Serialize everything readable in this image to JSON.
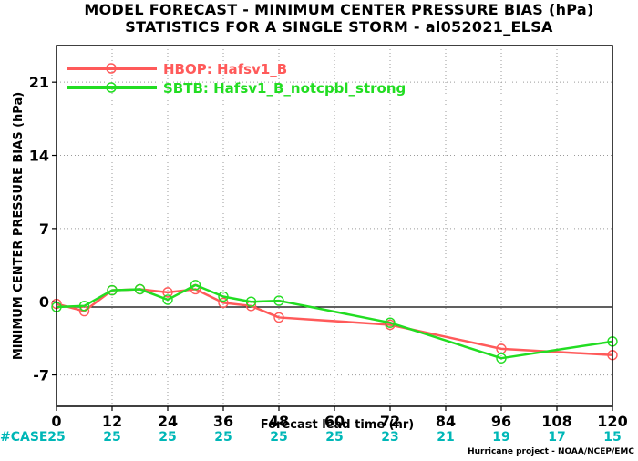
{
  "colors": {
    "hbop": "#ff5a5a",
    "sbtb": "#22dd22",
    "case": "#00b7b7",
    "grid": "#9a9a9a"
  },
  "chart_data": {
    "type": "line",
    "title": "MODEL FORECAST - MINIMUM CENTER PRESSURE BIAS (hPa)",
    "subtitle": "STATISTICS FOR A SINGLE STORM - al052021_ELSA",
    "xlabel": "Forecast lead time (hr)",
    "ylabel": "MINIMUM CENTER PRESSURE BIAS (hPa)",
    "xlim": [
      0,
      120
    ],
    "ylim": [
      -10,
      24.5
    ],
    "x_ticks": [
      "0",
      "12",
      "24",
      "36",
      "48",
      "60",
      "72",
      "84",
      "96",
      "108",
      "120"
    ],
    "y_ticks": [
      "-7",
      "0",
      "7",
      "14",
      "21"
    ],
    "grid": "dotted",
    "legend_position": "top-left",
    "case_label": "#CASE",
    "case_counts": [
      "25",
      "25",
      "25",
      "25",
      "25",
      "25",
      "23",
      "21",
      "19",
      "17",
      "15"
    ],
    "credit": "Hurricane project - NOAA/NCEP/EMC",
    "series": [
      {
        "name": "HBOP: Hafsv1_B",
        "color": "#ff5a5a",
        "x": [
          0,
          6,
          12,
          18,
          24,
          30,
          36,
          42,
          48,
          72,
          96,
          120
        ],
        "y": [
          -0.2,
          -0.9,
          1.1,
          1.2,
          0.9,
          1.2,
          -0.1,
          -0.4,
          -1.5,
          -2.2,
          -4.5,
          -5.1
        ]
      },
      {
        "name": "SBTB: Hafsv1_B_notcpbl_strong",
        "color": "#22dd22",
        "x": [
          0,
          6,
          12,
          18,
          24,
          30,
          36,
          42,
          48,
          72,
          96,
          120
        ],
        "y": [
          -0.5,
          -0.4,
          1.1,
          1.2,
          0.2,
          1.6,
          0.5,
          0.0,
          0.1,
          -2.0,
          -5.4,
          -3.8
        ]
      }
    ]
  }
}
